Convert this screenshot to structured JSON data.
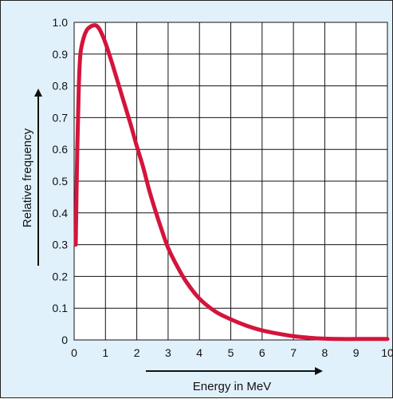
{
  "chart_data": {
    "type": "line",
    "title": "",
    "xlabel": "Energy in MeV",
    "ylabel": "Relative frequency",
    "xlim": [
      0,
      10
    ],
    "ylim": [
      0,
      1.0
    ],
    "x_ticks": [
      "0",
      "1",
      "2",
      "3",
      "4",
      "5",
      "6",
      "7",
      "8",
      "9",
      "10"
    ],
    "y_ticks": [
      "0",
      "0.1",
      "0.2",
      "0.3",
      "0.4",
      "0.5",
      "0.6",
      "0.7",
      "0.8",
      "0.9",
      "1.0"
    ],
    "grid": true,
    "series": [
      {
        "color": "#d4143c",
        "x": [
          0.05,
          0.1,
          0.15,
          0.2,
          0.3,
          0.4,
          0.5,
          0.6,
          0.7,
          0.8,
          0.9,
          1.0,
          1.2,
          1.4,
          1.6,
          1.8,
          2.0,
          2.2,
          2.4,
          2.6,
          2.8,
          3.0,
          3.3,
          3.6,
          4.0,
          4.5,
          5.0,
          5.5,
          6.0,
          6.5,
          7.0,
          7.5,
          8.0,
          8.5,
          9.0,
          9.5,
          10.0
        ],
        "y": [
          0.3,
          0.6,
          0.8,
          0.9,
          0.95,
          0.975,
          0.985,
          0.99,
          0.99,
          0.98,
          0.96,
          0.935,
          0.875,
          0.81,
          0.745,
          0.68,
          0.61,
          0.545,
          0.47,
          0.405,
          0.345,
          0.29,
          0.23,
          0.18,
          0.13,
          0.09,
          0.065,
          0.045,
          0.03,
          0.02,
          0.012,
          0.007,
          0.004,
          0.003,
          0.003,
          0.003,
          0.003
        ]
      }
    ]
  }
}
